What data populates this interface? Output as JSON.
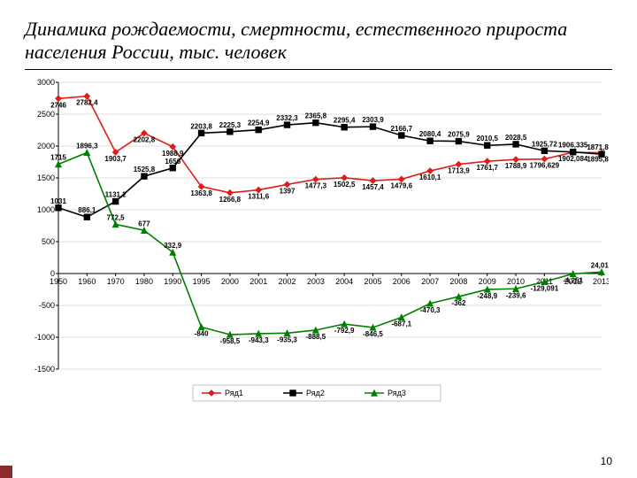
{
  "title": "Динамика рождаемости, смертности, естественного прироста населения России, тыс. человек",
  "pageNumber": "10",
  "chart": {
    "type": "line",
    "background_color": "#ffffff",
    "grid_color": "#bfbfbf",
    "axis_color": "#000000",
    "title_fontsize": 22,
    "label_fontsize": 9,
    "tick_fontsize": 9,
    "ylim": [
      -1500,
      3000
    ],
    "ytick_step": 500,
    "categories": [
      "1950",
      "1960",
      "1970",
      "1980",
      "1990",
      "1995",
      "2000",
      "2001",
      "2002",
      "2003",
      "2004",
      "2005",
      "2006",
      "2007",
      "2008",
      "2009",
      "2010",
      "2011",
      "2012",
      "2013"
    ],
    "series": [
      {
        "name": "Ряд1",
        "color": "#e01b1b",
        "marker": "diamond",
        "values": [
          2746,
          2782.4,
          1903.7,
          2202.8,
          1988.9,
          1363.8,
          1266.8,
          1311.6,
          1397,
          1477.3,
          1502.5,
          1457.4,
          1479.6,
          1610.1,
          1713.9,
          1761.7,
          1788.9,
          1796.629,
          1902.084,
          1895.822
        ],
        "labels": [
          "2746",
          "2782,4",
          "1903,7",
          "2202,8",
          "1988,9",
          "1363,8",
          "1266,8",
          "1311,6",
          "1397",
          "1477,3",
          "1502,5",
          "1457,4",
          "1479,6",
          "1610,1",
          "1713,9",
          "1761,7",
          "1788,9",
          "1796,629",
          "1902,084",
          "1895,822"
        ]
      },
      {
        "name": "Ряд2",
        "color": "#000000",
        "marker": "square",
        "values": [
          1031,
          886.1,
          1131.2,
          1525.8,
          1656,
          2203.8,
          2225.3,
          2254.9,
          2332.3,
          2365.8,
          2295.4,
          2303.9,
          2166.7,
          2080.4,
          2075.9,
          2010.5,
          2028.5,
          1925.72,
          1906.335,
          1871.809
        ],
        "labels": [
          "1031",
          "886,1",
          "1131,2",
          "1525,8",
          "1656",
          "2203,8",
          "2225,3",
          "2254,9",
          "2332,3",
          "2365,8",
          "2295,4",
          "2303,9",
          "2166,7",
          "2080,4",
          "2075,9",
          "2010,5",
          "2028,5",
          "1925,72",
          "1906,335",
          "1871,809"
        ]
      },
      {
        "name": "Ряд3",
        "color": "#008000",
        "marker": "triangle",
        "values": [
          1715,
          1896.3,
          772.5,
          677,
          332.9,
          -840,
          -958.5,
          -943.3,
          -935.3,
          -888.5,
          -792.9,
          -846.5,
          -687.1,
          -470.3,
          -362,
          -248.9,
          -239.6,
          -129.091,
          -4.251,
          24.013
        ],
        "labels": [
          "1715",
          "1896,3",
          "772,5",
          "677",
          "332,9",
          "-840",
          "-958,5",
          "-943,3",
          "-935,3",
          "-888,5",
          "-792,9",
          "-846,5",
          "-687,1",
          "-470,3",
          "-362",
          "-248,9",
          "-239,6",
          "-129,091",
          "-4,251",
          "24,013"
        ]
      }
    ],
    "legend_position": "bottom"
  }
}
